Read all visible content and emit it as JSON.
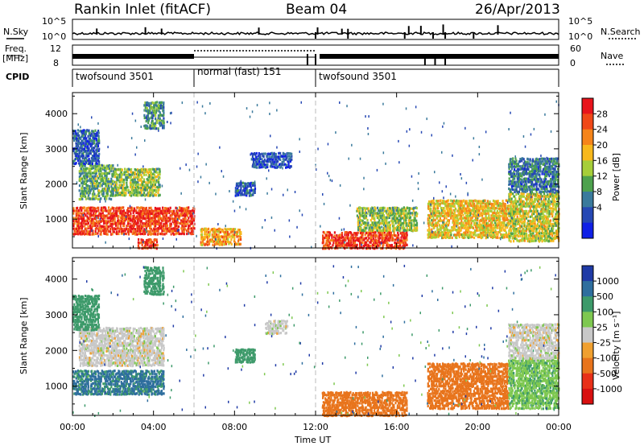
{
  "header": {
    "station": "Rankin Inlet (fitACF)",
    "beam": "Beam 04",
    "date": "26/Apr/2013"
  },
  "strip_labels": {
    "nsky": "N.Sky",
    "nsearch": "N.Search",
    "freq": "Freq.",
    "freq_unit": "[MHz]",
    "nave": "Nave",
    "cpid": "CPID",
    "nsky_ticks": [
      "10^5",
      "10^0"
    ],
    "nsearch_ticks": [
      "10^5",
      "10^0"
    ],
    "freq_ticks": [
      "12",
      "8"
    ],
    "nave_ticks": [
      "60",
      "0"
    ]
  },
  "cpid_segments": [
    {
      "label": "twofsound 3501",
      "start_h": 0,
      "end_h": 6.0
    },
    {
      "label": "normal (fast) 151",
      "start_h": 6.0,
      "end_h": 12.0
    },
    {
      "label": "twofsound 3501",
      "start_h": 12.0,
      "end_h": 24.0
    }
  ],
  "panels": {
    "ylabel": "Slant Range [km]",
    "xlabel": "Time UT"
  },
  "colorbars": {
    "power": {
      "label": "Power [dB]",
      "ticks": [
        "28",
        "24",
        "20",
        "16",
        "12",
        "8",
        "4"
      ],
      "colors": [
        "#e8141c",
        "#f04818",
        "#f5841a",
        "#f7b81c",
        "#a6ce39",
        "#4da14d",
        "#3a7a9c",
        "#2648b4",
        "#1020e6"
      ]
    },
    "velocity": {
      "label": "Velocity [m s⁻¹]",
      "ticks": [
        "1000",
        "500",
        "100",
        "25",
        "-25",
        "-100",
        "-500",
        "-1000"
      ],
      "colors": [
        "#1f3aa6",
        "#2e6e9e",
        "#3d9a6a",
        "#7ec850",
        "#c8c8c8",
        "#f0a030",
        "#e8741c",
        "#e83018",
        "#d81010"
      ]
    }
  },
  "chart_data": {
    "type": "heatmap",
    "title": "Rankin Inlet (fitACF)",
    "x_ticks": [
      "00:00",
      "04:00",
      "08:00",
      "12:00",
      "16:00",
      "20:00",
      "00:00"
    ],
    "xlim_hours": [
      0,
      24
    ],
    "xlabel": "Time UT",
    "ylabel": "Slant Range [km]",
    "ylim_km": [
      180,
      4600
    ],
    "y_ticks": [
      1000,
      2000,
      3000,
      4000
    ],
    "power_regions": [
      {
        "t0": 0.0,
        "t1": 6.0,
        "r0": 600,
        "r1": 1400,
        "level": 26
      },
      {
        "t0": 0.3,
        "t1": 2.0,
        "r0": 1600,
        "r1": 2600,
        "level": 12
      },
      {
        "t0": 2.0,
        "t1": 4.3,
        "r0": 1700,
        "r1": 2500,
        "level": 14
      },
      {
        "t0": 0.0,
        "t1": 1.3,
        "r0": 2600,
        "r1": 3600,
        "level": 6
      },
      {
        "t0": 3.5,
        "t1": 4.5,
        "r0": 3600,
        "r1": 4400,
        "level": 10
      },
      {
        "t0": 3.2,
        "t1": 4.2,
        "r0": 200,
        "r1": 500,
        "level": 26
      },
      {
        "t0": 6.3,
        "t1": 8.3,
        "r0": 300,
        "r1": 800,
        "level": 20
      },
      {
        "t0": 8.8,
        "t1": 10.8,
        "r0": 2500,
        "r1": 2950,
        "level": 5
      },
      {
        "t0": 8.0,
        "t1": 9.0,
        "r0": 1700,
        "r1": 2100,
        "level": 6
      },
      {
        "t0": 12.3,
        "t1": 16.5,
        "r0": 200,
        "r1": 700,
        "level": 26
      },
      {
        "t0": 14.0,
        "t1": 17.0,
        "r0": 700,
        "r1": 1400,
        "level": 14
      },
      {
        "t0": 17.5,
        "t1": 21.5,
        "r0": 500,
        "r1": 1600,
        "level": 18
      },
      {
        "t0": 21.5,
        "t1": 24.0,
        "r0": 400,
        "r1": 1800,
        "level": 16
      },
      {
        "t0": 21.5,
        "t1": 24.0,
        "r0": 1800,
        "r1": 2800,
        "level": 8
      }
    ],
    "velocity_regions": [
      {
        "t0": 0.0,
        "t1": 4.5,
        "r0": 800,
        "r1": 1500,
        "level": 600
      },
      {
        "t0": 0.3,
        "t1": 4.5,
        "r0": 1600,
        "r1": 2700,
        "level": 0
      },
      {
        "t0": 0.0,
        "t1": 1.3,
        "r0": 2600,
        "r1": 3600,
        "level": 300
      },
      {
        "t0": 3.5,
        "t1": 4.5,
        "r0": 3600,
        "r1": 4400,
        "level": 300
      },
      {
        "t0": 9.5,
        "t1": 10.6,
        "r0": 2500,
        "r1": 2900,
        "level": 0
      },
      {
        "t0": 8.0,
        "t1": 9.0,
        "r0": 1700,
        "r1": 2100,
        "level": 300
      },
      {
        "t0": 12.3,
        "t1": 16.5,
        "r0": 200,
        "r1": 900,
        "level": -200
      },
      {
        "t0": 17.5,
        "t1": 21.5,
        "r0": 400,
        "r1": 1700,
        "level": -300
      },
      {
        "t0": 21.5,
        "t1": 24.0,
        "r0": 400,
        "r1": 1800,
        "level": 80
      },
      {
        "t0": 21.5,
        "t1": 24.0,
        "r0": 1800,
        "r1": 2800,
        "level": 0
      }
    ]
  }
}
